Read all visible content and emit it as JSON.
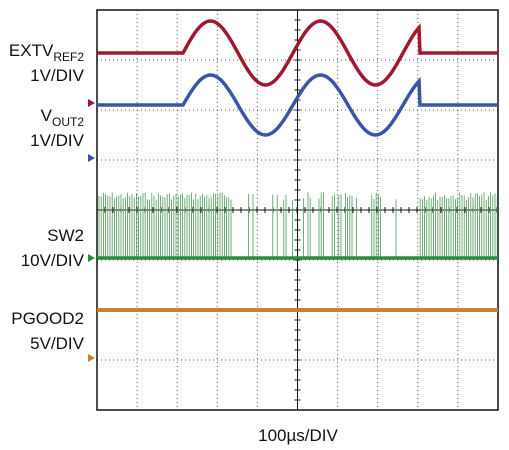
{
  "channels": [
    {
      "name": "EXTV",
      "name_sub": "REF2",
      "scale": "1V/DIV"
    },
    {
      "name": "V",
      "name_sub": "OUT2",
      "scale": "1V/DIV"
    },
    {
      "name": "SW2",
      "scale": "10V/DIV"
    },
    {
      "name": "PGOOD2",
      "scale": "5V/DIV"
    }
  ],
  "timebase": "100µs/DIV"
}
